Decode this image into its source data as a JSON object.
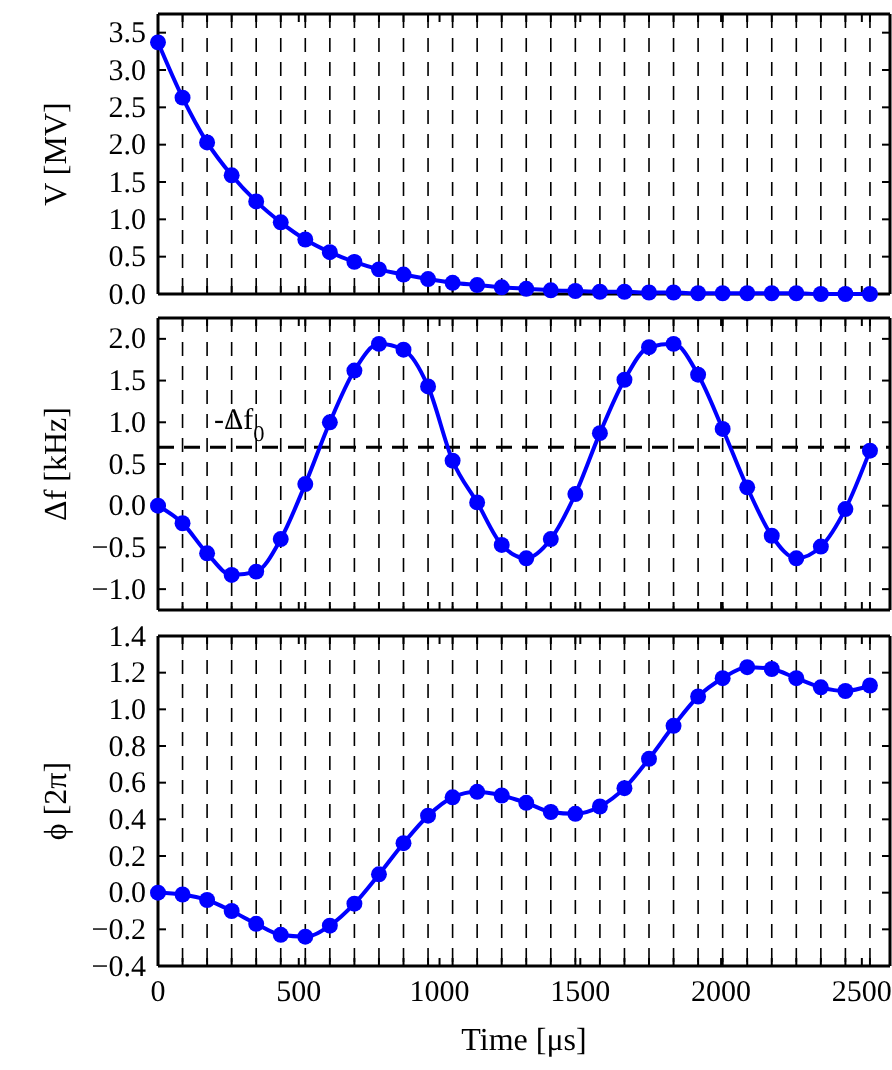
{
  "chart_data": [
    {
      "type": "line",
      "ylabel": "V [MV]",
      "marker": "circle",
      "line_style": "solid",
      "grid": "x",
      "tick_labels": "y",
      "x": [
        0,
        87.2,
        174.4,
        261.6,
        348.8,
        436,
        523.2,
        610.4,
        697.6,
        784.8,
        872,
        959.2,
        1046.4,
        1133.6,
        1220.8,
        1308,
        1395.2,
        1482.4,
        1569.6,
        1656.8,
        1744,
        1831.2,
        1918.4,
        2005.6,
        2092.8,
        2180,
        2267.2,
        2354.4,
        2441.6,
        2528.8
      ],
      "series": [
        {
          "color": "#0000ff",
          "values": [
            3.37,
            2.63,
            2.03,
            1.59,
            1.24,
            0.96,
            0.73,
            0.56,
            0.43,
            0.33,
            0.26,
            0.2,
            0.15,
            0.12,
            0.09,
            0.07,
            0.05,
            0.04,
            0.03,
            0.03,
            0.02,
            0.02,
            0.01,
            0.01,
            0.01,
            0.01,
            0.01,
            0.0,
            0.0,
            0.0
          ]
        }
      ],
      "xlim": [
        0,
        2600
      ],
      "xticks": [
        0,
        {
          "value": 87.2,
          "label": null
        },
        {
          "value": 174.4,
          "label": null
        },
        {
          "value": 261.6,
          "label": null
        },
        {
          "value": 348.8,
          "label": null
        },
        {
          "value": 436,
          "label": null
        },
        500,
        {
          "value": 523.2,
          "label": null
        },
        {
          "value": 610.4,
          "label": null
        },
        {
          "value": 697.6,
          "label": null
        },
        {
          "value": 784.8,
          "label": null
        },
        {
          "value": 872,
          "label": null
        },
        {
          "value": 959.2,
          "label": null
        },
        1000,
        {
          "value": 1046.4,
          "label": null
        },
        {
          "value": 1133.6,
          "label": null
        },
        {
          "value": 1220.8,
          "label": null
        },
        {
          "value": 1308,
          "label": null
        },
        {
          "value": 1395.2,
          "label": null
        },
        {
          "value": 1482.4,
          "label": null
        },
        1500,
        {
          "value": 1569.6,
          "label": null
        },
        {
          "value": 1656.8,
          "label": null
        },
        {
          "value": 1744,
          "label": null
        },
        {
          "value": 1831.2,
          "label": null
        },
        {
          "value": 1918.4,
          "label": null
        },
        2000,
        {
          "value": 2005.6,
          "label": null
        },
        {
          "value": 2092.8,
          "label": null
        },
        {
          "value": 2180,
          "label": null
        },
        {
          "value": 2267.2,
          "label": null
        },
        {
          "value": 2354.4,
          "label": null
        },
        {
          "value": 2441.6,
          "label": null
        },
        2500,
        {
          "value": 2528.8,
          "label": null
        }
      ],
      "ylim": [
        0,
        3.75
      ],
      "yticks": [
        {
          "value": 0,
          "label": "0.0"
        },
        0.5,
        {
          "value": 1,
          "label": "1.0"
        },
        1.5,
        {
          "value": 2,
          "label": "2.0"
        },
        2.5,
        {
          "value": 3,
          "label": "3.0"
        },
        3.5
      ]
    },
    {
      "type": "line",
      "ylabel": "Δf [kHz]",
      "marker": "circle",
      "line_style": "solid",
      "grid": "x",
      "tick_labels": "y",
      "x": [
        0,
        87.2,
        174.4,
        261.6,
        348.8,
        436,
        523.2,
        610.4,
        697.6,
        784.8,
        872,
        959.2,
        1046.4,
        1133.6,
        1220.8,
        1308,
        1395.2,
        1482.4,
        1569.6,
        1656.8,
        1744,
        1831.2,
        1918.4,
        2005.6,
        2092.8,
        2180,
        2267.2,
        2354.4,
        2441.6,
        2528.8
      ],
      "series": [
        {
          "color": "#0000ff",
          "values": [
            0.0,
            -0.21,
            -0.57,
            -0.83,
            -0.79,
            -0.4,
            0.26,
            1.0,
            1.62,
            1.94,
            1.87,
            1.43,
            0.54,
            0.04,
            -0.47,
            -0.63,
            -0.4,
            0.14,
            0.87,
            1.51,
            1.9,
            1.94,
            1.57,
            0.92,
            0.22,
            -0.36,
            -0.63,
            -0.49,
            -0.04,
            0.66
          ]
        }
      ],
      "xlim": [
        0,
        2600
      ],
      "xticks": [
        0,
        {
          "value": 87.2,
          "label": null
        },
        {
          "value": 174.4,
          "label": null
        },
        {
          "value": 261.6,
          "label": null
        },
        {
          "value": 348.8,
          "label": null
        },
        {
          "value": 436,
          "label": null
        },
        500,
        {
          "value": 523.2,
          "label": null
        },
        {
          "value": 610.4,
          "label": null
        },
        {
          "value": 697.6,
          "label": null
        },
        {
          "value": 784.8,
          "label": null
        },
        {
          "value": 872,
          "label": null
        },
        {
          "value": 959.2,
          "label": null
        },
        1000,
        {
          "value": 1046.4,
          "label": null
        },
        {
          "value": 1133.6,
          "label": null
        },
        {
          "value": 1220.8,
          "label": null
        },
        {
          "value": 1308,
          "label": null
        },
        {
          "value": 1395.2,
          "label": null
        },
        {
          "value": 1482.4,
          "label": null
        },
        1500,
        {
          "value": 1569.6,
          "label": null
        },
        {
          "value": 1656.8,
          "label": null
        },
        {
          "value": 1744,
          "label": null
        },
        {
          "value": 1831.2,
          "label": null
        },
        {
          "value": 1918.4,
          "label": null
        },
        2000,
        {
          "value": 2005.6,
          "label": null
        },
        {
          "value": 2092.8,
          "label": null
        },
        {
          "value": 2180,
          "label": null
        },
        {
          "value": 2267.2,
          "label": null
        },
        {
          "value": 2354.4,
          "label": null
        },
        {
          "value": 2441.6,
          "label": null
        },
        2500,
        {
          "value": 2528.8,
          "label": null
        }
      ],
      "ylim": [
        -1.25,
        2.25
      ],
      "yticks": [
        {
          "value": -1,
          "label": "−1.0"
        },
        {
          "value": -0.5,
          "label": "−0.5"
        },
        {
          "value": 0,
          "label": "0.0"
        },
        0.5,
        {
          "value": 1,
          "label": "1.0"
        },
        1.5,
        {
          "value": 2,
          "label": "2.0"
        }
      ],
      "ref_lines": [
        {
          "axis": "y",
          "value": 0.7,
          "label": "-Δf$_{0}$",
          "color": "#000000",
          "line_style": "dashed"
        }
      ]
    },
    {
      "type": "line",
      "ylabel": "ϕ [2π]",
      "xlabel": "Time [μs]",
      "marker": "circle",
      "line_style": "solid",
      "grid": "x",
      "x": [
        0,
        87.2,
        174.4,
        261.6,
        348.8,
        436,
        523.2,
        610.4,
        697.6,
        784.8,
        872,
        959.2,
        1046.4,
        1133.6,
        1220.8,
        1308,
        1395.2,
        1482.4,
        1569.6,
        1656.8,
        1744,
        1831.2,
        1918.4,
        2005.6,
        2092.8,
        2180,
        2267.2,
        2354.4,
        2441.6,
        2528.8
      ],
      "series": [
        {
          "color": "#0000ff",
          "values": [
            0.0,
            -0.01,
            -0.04,
            -0.1,
            -0.17,
            -0.23,
            -0.24,
            -0.18,
            -0.06,
            0.1,
            0.27,
            0.42,
            0.52,
            0.55,
            0.53,
            0.49,
            0.44,
            0.43,
            0.47,
            0.57,
            0.73,
            0.91,
            1.07,
            1.17,
            1.23,
            1.22,
            1.17,
            1.12,
            1.1,
            1.13
          ]
        }
      ],
      "xlim": [
        0,
        2600
      ],
      "xticks": [
        0,
        {
          "value": 87.2,
          "label": null
        },
        {
          "value": 174.4,
          "label": null
        },
        {
          "value": 261.6,
          "label": null
        },
        {
          "value": 348.8,
          "label": null
        },
        {
          "value": 436,
          "label": null
        },
        500,
        {
          "value": 523.2,
          "label": null
        },
        {
          "value": 610.4,
          "label": null
        },
        {
          "value": 697.6,
          "label": null
        },
        {
          "value": 784.8,
          "label": null
        },
        {
          "value": 872,
          "label": null
        },
        {
          "value": 959.2,
          "label": null
        },
        1000,
        {
          "value": 1046.4,
          "label": null
        },
        {
          "value": 1133.6,
          "label": null
        },
        {
          "value": 1220.8,
          "label": null
        },
        {
          "value": 1308,
          "label": null
        },
        {
          "value": 1395.2,
          "label": null
        },
        {
          "value": 1482.4,
          "label": null
        },
        1500,
        {
          "value": 1569.6,
          "label": null
        },
        {
          "value": 1656.8,
          "label": null
        },
        {
          "value": 1744,
          "label": null
        },
        {
          "value": 1831.2,
          "label": null
        },
        {
          "value": 1918.4,
          "label": null
        },
        2000,
        {
          "value": 2005.6,
          "label": null
        },
        {
          "value": 2092.8,
          "label": null
        },
        {
          "value": 2180,
          "label": null
        },
        {
          "value": 2267.2,
          "label": null
        },
        {
          "value": 2354.4,
          "label": null
        },
        {
          "value": 2441.6,
          "label": null
        },
        2500,
        {
          "value": 2528.8,
          "label": null
        }
      ],
      "ylim": [
        -0.4,
        1.4
      ],
      "yticks": [
        {
          "value": -0.4,
          "label": "−0.4"
        },
        {
          "value": -0.2,
          "label": "−0.2"
        },
        {
          "value": 0,
          "label": "0.0"
        },
        0.2,
        0.4,
        0.6,
        0.8,
        {
          "value": 1,
          "label": "1.0"
        },
        1.2,
        1.4
      ]
    }
  ]
}
